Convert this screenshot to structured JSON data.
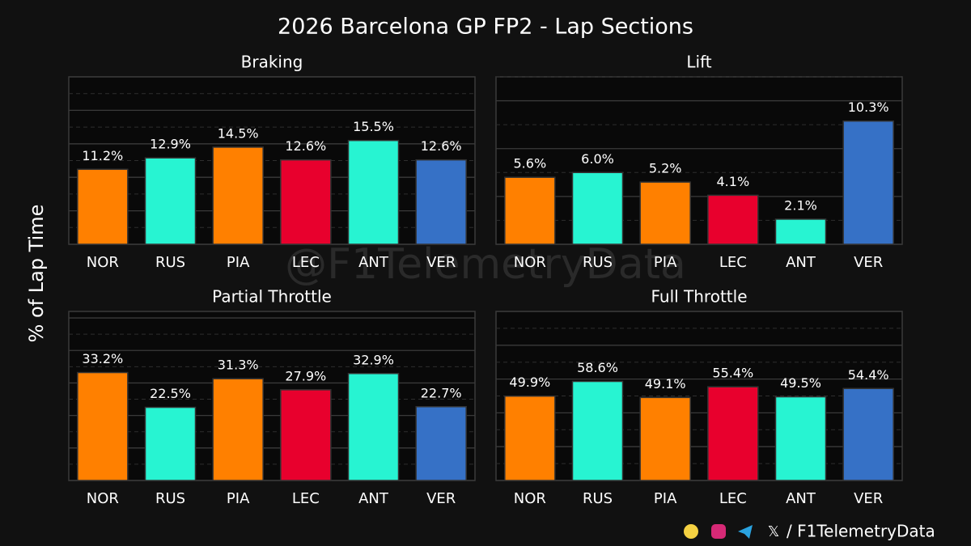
{
  "title": "2026 Barcelona GP FP2 - Lap Sections",
  "ylabel": "% of Lap Time",
  "watermark": "@F1TelemetryData",
  "footer": "/ F1TelemetryData",
  "chart_data": [
    {
      "type": "bar",
      "title": "Braking",
      "categories": [
        "NOR",
        "RUS",
        "PIA",
        "LEC",
        "ANT",
        "VER"
      ],
      "values": [
        11.2,
        12.9,
        14.5,
        12.6,
        15.5,
        12.6
      ],
      "value_labels": [
        "11.2%",
        "12.9%",
        "14.5%",
        "12.6%",
        "15.5%",
        "12.6%"
      ],
      "colors": [
        "#ff8000",
        "#27f4d2",
        "#ff8000",
        "#e8002d",
        "#27f4d2",
        "#3671c6"
      ],
      "ylim": [
        0,
        25
      ],
      "yticks": [
        0,
        5,
        10,
        15,
        20,
        25
      ],
      "yminorticks": [
        2.5,
        7.5,
        12.5,
        17.5,
        22.5
      ],
      "grid": true
    },
    {
      "type": "bar",
      "title": "Lift",
      "categories": [
        "NOR",
        "RUS",
        "PIA",
        "LEC",
        "ANT",
        "VER"
      ],
      "values": [
        5.6,
        6.0,
        5.2,
        4.1,
        2.1,
        10.3
      ],
      "value_labels": [
        "5.6%",
        "6.0%",
        "5.2%",
        "4.1%",
        "2.1%",
        "10.3%"
      ],
      "colors": [
        "#ff8000",
        "#27f4d2",
        "#ff8000",
        "#e8002d",
        "#27f4d2",
        "#3671c6"
      ],
      "ylim": [
        0,
        14
      ],
      "yticks": [
        0,
        4,
        8,
        12
      ],
      "yminorticks": [
        2,
        6,
        10,
        14
      ],
      "grid": true
    },
    {
      "type": "bar",
      "title": "Partial Throttle",
      "categories": [
        "NOR",
        "RUS",
        "PIA",
        "LEC",
        "ANT",
        "VER"
      ],
      "values": [
        33.2,
        22.5,
        31.3,
        27.9,
        32.9,
        22.7
      ],
      "value_labels": [
        "33.2%",
        "22.5%",
        "31.3%",
        "27.9%",
        "32.9%",
        "22.7%"
      ],
      "colors": [
        "#ff8000",
        "#27f4d2",
        "#ff8000",
        "#e8002d",
        "#27f4d2",
        "#3671c6"
      ],
      "ylim": [
        0,
        52
      ],
      "yticks": [
        0,
        10,
        20,
        30,
        40,
        50
      ],
      "yminorticks": [
        5,
        15,
        25,
        35,
        45
      ],
      "grid": true
    },
    {
      "type": "bar",
      "title": "Full Throttle",
      "categories": [
        "NOR",
        "RUS",
        "PIA",
        "LEC",
        "ANT",
        "VER"
      ],
      "values": [
        49.9,
        58.6,
        49.1,
        55.4,
        49.5,
        54.4
      ],
      "value_labels": [
        "49.9%",
        "58.6%",
        "49.1%",
        "55.4%",
        "49.5%",
        "54.4%"
      ],
      "colors": [
        "#ff8000",
        "#27f4d2",
        "#ff8000",
        "#e8002d",
        "#27f4d2",
        "#3671c6"
      ],
      "ylim": [
        0,
        100
      ],
      "yticks": [
        0,
        20,
        40,
        60,
        80,
        100
      ],
      "yminorticks": [
        10,
        30,
        50,
        70,
        90
      ],
      "grid": true
    }
  ]
}
